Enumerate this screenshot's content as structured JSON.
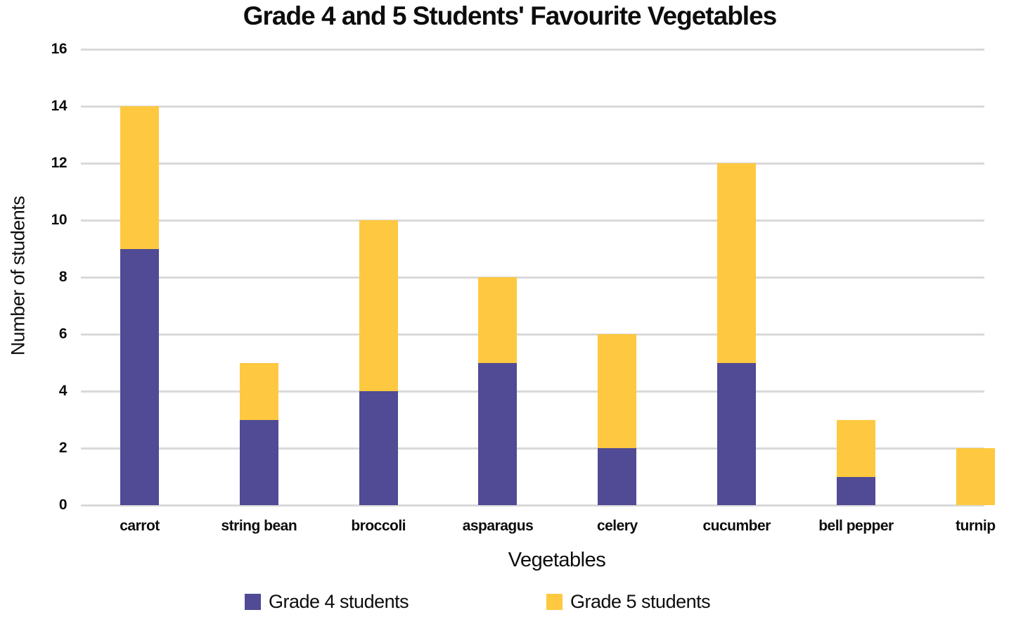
{
  "title": "Grade 4 and 5 Students' Favourite Vegetables",
  "chart_data": {
    "type": "bar",
    "stacked": true,
    "title": "Grade 4 and 5 Students' Favourite Vegetables",
    "xlabel": "Vegetables",
    "ylabel": "Number of students",
    "categories": [
      "carrot",
      "string bean",
      "broccoli",
      "asparagus",
      "celery",
      "cucumber",
      "bell pepper",
      "turnip"
    ],
    "series": [
      {
        "name": "Grade 4 students",
        "color": "#504b94",
        "values": [
          9,
          3,
          4,
          5,
          2,
          5,
          1,
          0
        ]
      },
      {
        "name": "Grade 5 students",
        "color": "#fec940",
        "values": [
          5,
          2,
          6,
          3,
          4,
          7,
          2,
          2
        ]
      }
    ],
    "ylim": [
      0,
      16
    ],
    "yticks": [
      0,
      2,
      4,
      6,
      8,
      10,
      12,
      14,
      16
    ],
    "grid": true,
    "gridline_color": "#d9d9d9",
    "legend_position": "bottom"
  }
}
